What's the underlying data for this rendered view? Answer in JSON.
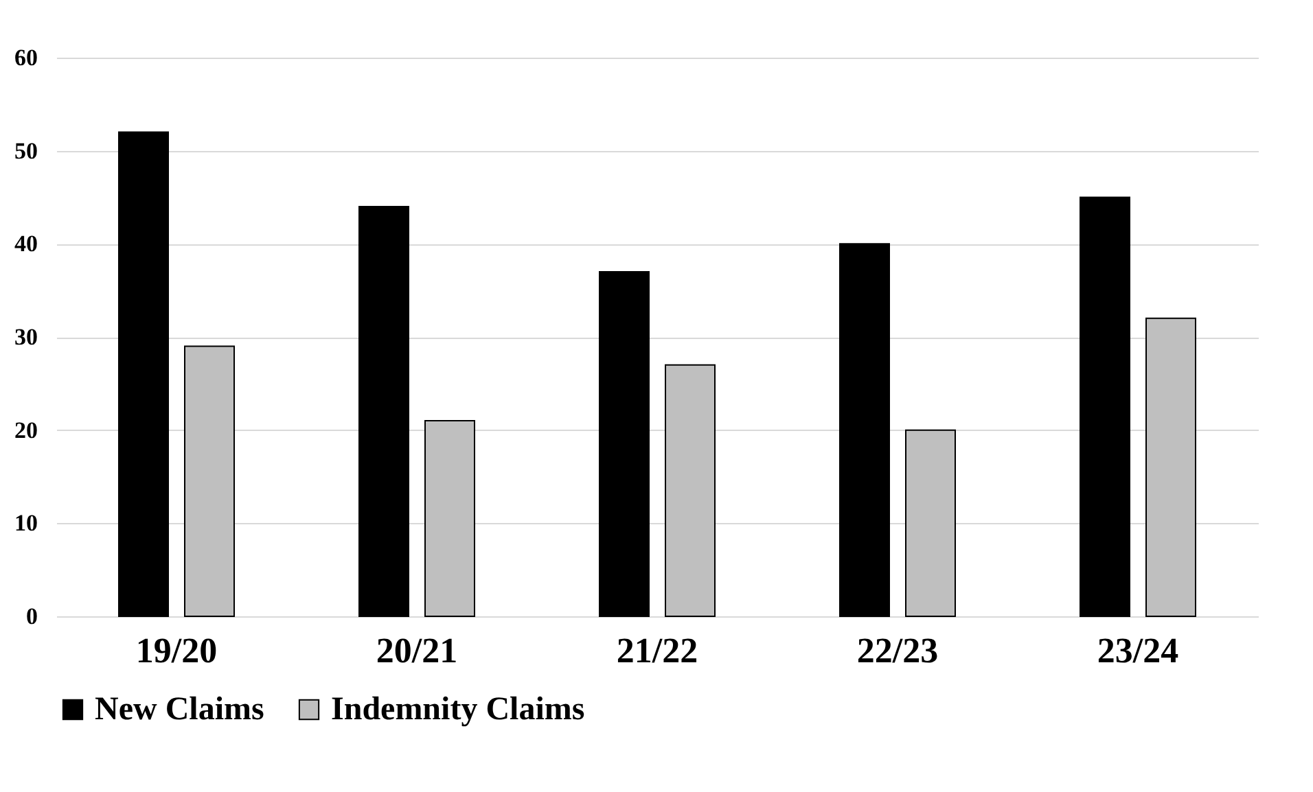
{
  "chart_data": {
    "type": "bar",
    "categories": [
      "19/20",
      "20/21",
      "21/22",
      "22/23",
      "23/24"
    ],
    "series": [
      {
        "name": "New Claims",
        "color": "#000000",
        "values": [
          52,
          44,
          37,
          40,
          45
        ]
      },
      {
        "name": "Indemnity Claims",
        "color": "#bfbfbf",
        "values": [
          29,
          21,
          27,
          20,
          32
        ]
      }
    ],
    "ylim": [
      0,
      60
    ],
    "yticks": [
      0,
      10,
      20,
      30,
      40,
      50,
      60
    ],
    "grid": "y",
    "legend": "bottom"
  }
}
